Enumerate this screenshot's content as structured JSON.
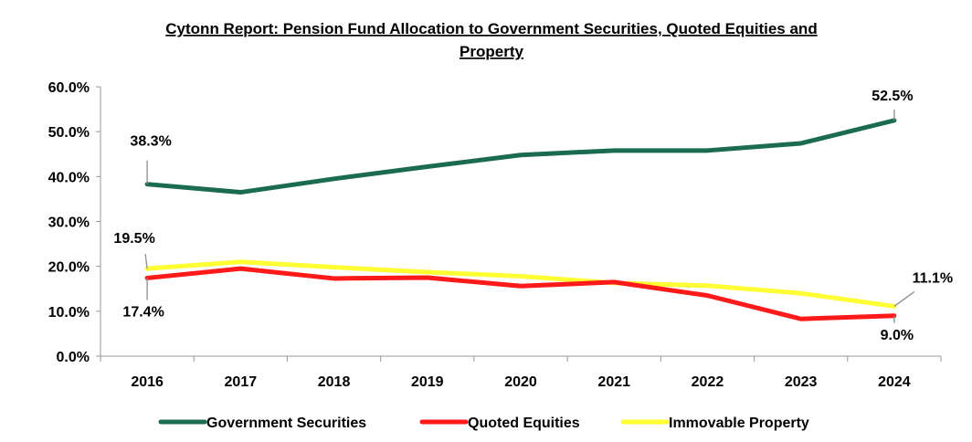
{
  "chart_data": {
    "type": "line",
    "title_line1": "Cytonn Report: Pension Fund Allocation to Government Securities, Quoted Equities and",
    "title_line2": "Property",
    "categories": [
      "2016",
      "2017",
      "2018",
      "2019",
      "2020",
      "2021",
      "2022",
      "2023",
      "2024"
    ],
    "ylim": [
      0,
      60
    ],
    "yticks": [
      "0.0%",
      "10.0%",
      "20.0%",
      "30.0%",
      "40.0%",
      "50.0%",
      "60.0%"
    ],
    "grid": false,
    "legend_position": "bottom",
    "series": [
      {
        "name": "Government Securities",
        "color": "#1a6b52",
        "values": [
          38.3,
          36.5,
          39.5,
          42.2,
          44.8,
          45.8,
          45.8,
          47.4,
          52.5
        ]
      },
      {
        "name": "Quoted Equities",
        "color": "#ff1a1a",
        "values": [
          17.4,
          19.5,
          17.3,
          17.5,
          15.6,
          16.5,
          13.5,
          8.3,
          9.0
        ]
      },
      {
        "name": "Immovable Property",
        "color": "#ffff33",
        "values": [
          19.5,
          21.0,
          19.8,
          18.7,
          17.8,
          16.3,
          15.7,
          14.0,
          11.1
        ]
      }
    ],
    "data_labels": [
      {
        "text": "38.3%",
        "series": 0,
        "index": 0
      },
      {
        "text": "52.5%",
        "series": 0,
        "index": 8
      },
      {
        "text": "19.5%",
        "series": 2,
        "index": 0
      },
      {
        "text": "17.4%",
        "series": 1,
        "index": 0
      },
      {
        "text": "11.1%",
        "series": 2,
        "index": 8
      },
      {
        "text": "9.0%",
        "series": 1,
        "index": 8
      }
    ]
  }
}
